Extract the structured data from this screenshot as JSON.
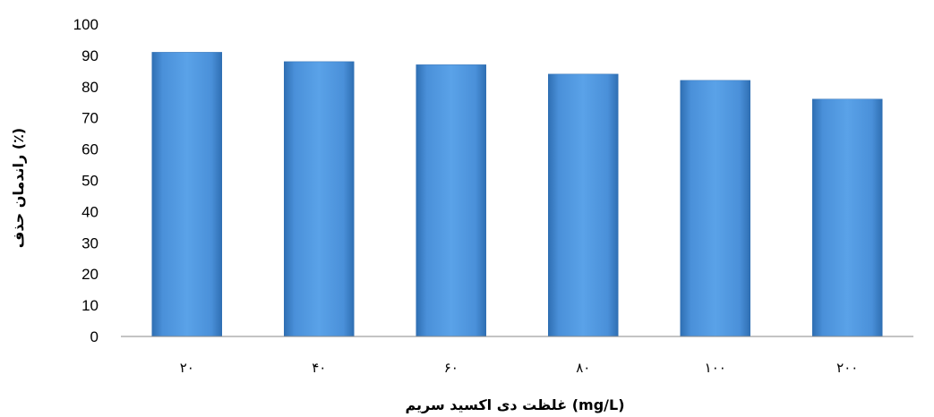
{
  "chart_data": {
    "type": "bar",
    "categories": [
      "٢٠",
      "۴٠",
      "۶٠",
      "٨٠",
      "١٠٠",
      "٢٠٠"
    ],
    "values": [
      91,
      88,
      87,
      84,
      82,
      76
    ],
    "xlabel": "غلظت دی اکسید سریم (mg/L)",
    "ylabel": "راندمان حذف (٪)",
    "ylim": [
      0,
      100
    ],
    "yticks": [
      "0",
      "10",
      "20",
      "30",
      "40",
      "50",
      "60",
      "70",
      "80",
      "90",
      "100"
    ],
    "grid": false,
    "legend": "none",
    "bar_color": "#4A90D9"
  }
}
